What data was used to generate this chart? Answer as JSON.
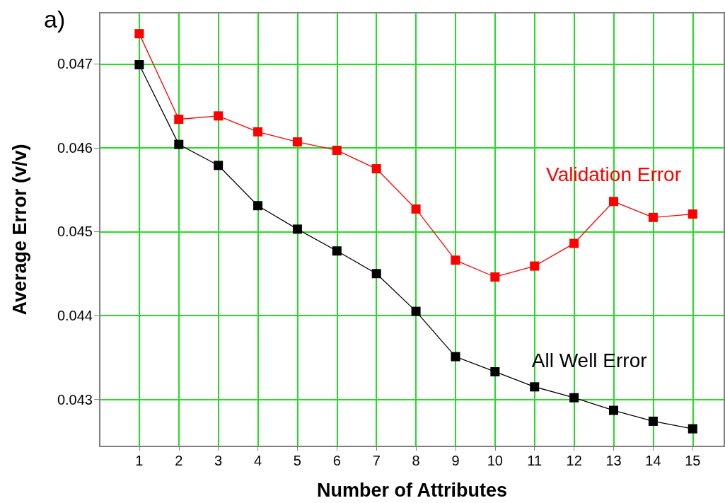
{
  "chart_data": {
    "type": "line",
    "xlabel": "Number of Attributes",
    "ylabel": "Average Error (v/v)",
    "annotations": [
      "a)"
    ],
    "x": [
      1,
      2,
      3,
      4,
      5,
      6,
      7,
      8,
      9,
      10,
      11,
      12,
      13,
      14,
      15
    ],
    "xlim": [
      0,
      15.8
    ],
    "xticks": [
      1,
      2,
      3,
      4,
      5,
      6,
      7,
      8,
      9,
      10,
      11,
      12,
      13,
      14,
      15
    ],
    "ylim": [
      0.04244,
      0.04761
    ],
    "yticks": [
      0.043,
      0.044,
      0.045,
      0.046,
      0.047
    ],
    "grid": true,
    "marker": "square",
    "line_style": "solid",
    "legend": false,
    "series": [
      {
        "name": "Validation Error",
        "color": "#ff0000",
        "values": [
          0.04736,
          0.04634,
          0.04638,
          0.04619,
          0.04607,
          0.04597,
          0.04575,
          0.04527,
          0.04466,
          0.04446,
          0.04459,
          0.04486,
          0.04536,
          0.04517,
          0.04521
        ]
      },
      {
        "name": "All Well Error",
        "color": "#000000",
        "values": [
          0.04699,
          0.04604,
          0.04579,
          0.04531,
          0.04503,
          0.04477,
          0.0445,
          0.04405,
          0.04351,
          0.04333,
          0.04315,
          0.04302,
          0.04287,
          0.04274,
          0.04265
        ]
      }
    ]
  }
}
